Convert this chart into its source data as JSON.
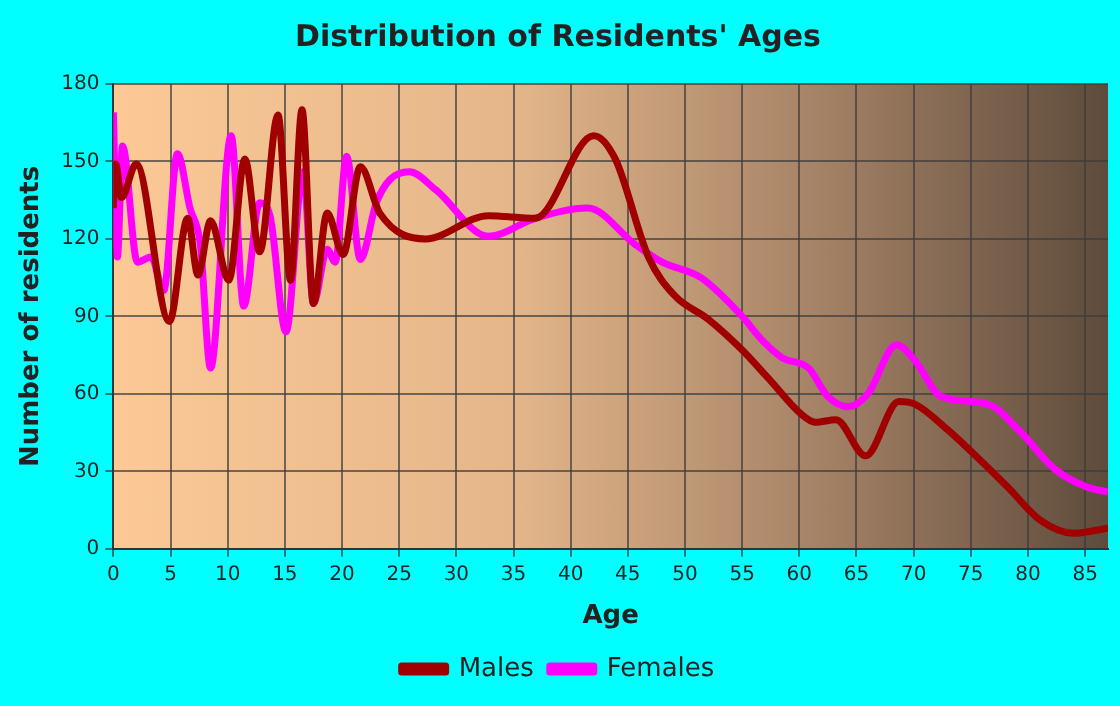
{
  "chart_data": {
    "type": "line",
    "title": "Distribution of Residents' Ages",
    "xlabel": "Age",
    "ylabel": "Number of residents",
    "xlim": [
      0,
      87
    ],
    "xticks": [
      0,
      5,
      10,
      15,
      20,
      25,
      30,
      35,
      40,
      45,
      50,
      55,
      60,
      65,
      70,
      75,
      80,
      85
    ],
    "ylim": [
      0,
      180
    ],
    "yticks": [
      0,
      30,
      60,
      90,
      120,
      150,
      180
    ],
    "grid": true,
    "legend": "bottom",
    "marker": "none",
    "line_style": "solid",
    "series": [
      {
        "name": "Males",
        "color": "#a00000",
        "x": [
          0,
          0.2,
          0.7,
          2,
          4.9,
          6.5,
          7.4,
          8.5,
          10.1,
          11.5,
          12.8,
          14.4,
          15.5,
          16.5,
          17.5,
          18.7,
          20.1,
          21.6,
          23.3,
          27.3,
          32.8,
          36.9,
          42,
          43.9,
          46.8,
          49.1,
          52,
          55,
          57.3,
          60.2,
          61.4,
          63.2,
          65.8,
          68.7,
          70.1,
          73,
          75.9,
          78.2,
          81.1,
          84,
          87
        ],
        "values": [
          132,
          149,
          136,
          149,
          88,
          128,
          106,
          127,
          104,
          151,
          115,
          168,
          104,
          170,
          95,
          130,
          114,
          148,
          130,
          120,
          129,
          128,
          160,
          151,
          113,
          98,
          89,
          77,
          66,
          52,
          49,
          50,
          36,
          57,
          56,
          46,
          34,
          24,
          11,
          6,
          8
        ]
      },
      {
        "name": "Females",
        "color": "#ff00ff",
        "x": [
          0,
          0.35,
          0.8,
          2.1,
          3.3,
          4.4,
          5.6,
          6.7,
          7.6,
          8.5,
          10.3,
          11.4,
          12.8,
          13.7,
          15.1,
          16.6,
          17.5,
          18.7,
          19.4,
          20.4,
          21.6,
          23,
          24.2,
          25.9,
          28.2,
          32.8,
          36.9,
          41.5,
          45.6,
          48,
          51.4,
          55,
          56.7,
          58.5,
          60.8,
          62.5,
          64.3,
          66,
          68.5,
          70.1,
          72.4,
          76.5,
          79.4,
          82.3,
          85.1,
          87
        ],
        "values": [
          169,
          113,
          156,
          111,
          113,
          100,
          153,
          132,
          118,
          70,
          160,
          94,
          134,
          129,
          84,
          146,
          95,
          116,
          111,
          152,
          112,
          134,
          143,
          146,
          139,
          121,
          128,
          132,
          118,
          111,
          105,
          90,
          81,
          74,
          70,
          59,
          55,
          60,
          79,
          73,
          59,
          56,
          45,
          31,
          24,
          22
        ]
      }
    ]
  }
}
